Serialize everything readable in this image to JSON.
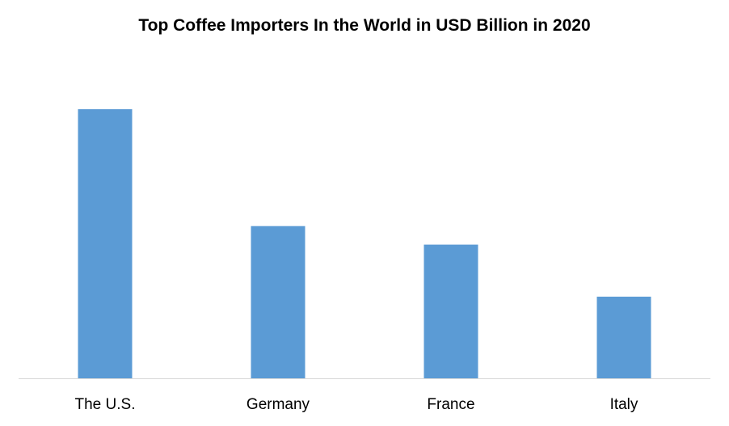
{
  "chart_data": {
    "type": "bar",
    "title": "Top Coffee Importers In the World in USD Billion in 2020",
    "categories": [
      "The U.S.",
      "Germany",
      "France",
      "Italy"
    ],
    "values": [
      6.1,
      3.45,
      3.03,
      1.85
    ],
    "ylim": [
      0,
      7
    ],
    "xlabel": "",
    "ylabel": "",
    "grid": false,
    "legend": "none",
    "bar_color": "#5B9BD5",
    "axis_color": "#D9D9D9"
  }
}
